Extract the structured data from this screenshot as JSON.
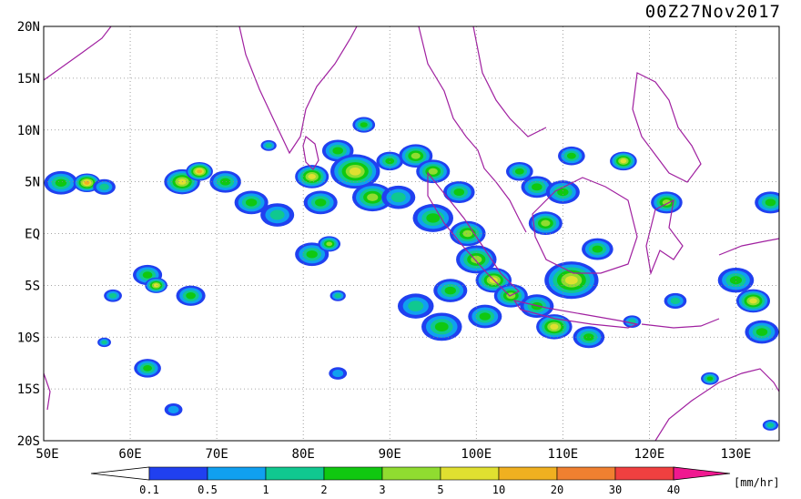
{
  "header": {
    "timestamp": "00Z27Nov2017"
  },
  "map": {
    "lon_min": 50,
    "lon_max": 135,
    "lat_min": -20,
    "lat_max": 20,
    "grid_lines": "dotted",
    "lat_labels": [
      "20N",
      "15N",
      "10N",
      "5N",
      "EQ",
      "5S",
      "10S",
      "15S",
      "20S"
    ],
    "lat_values": [
      20,
      15,
      10,
      5,
      0,
      -5,
      -10,
      -15,
      -20
    ],
    "lon_labels": [
      "50E",
      "60E",
      "70E",
      "80E",
      "90E",
      "100E",
      "110E",
      "120E",
      "130E"
    ],
    "lon_values": [
      50,
      60,
      70,
      80,
      90,
      100,
      110,
      120,
      130
    ],
    "coastline_color": "#a020a0"
  },
  "legend": {
    "unit": "[mm/hr]",
    "tick_labels": [
      "0.1",
      "0.5",
      "1",
      "2",
      "3",
      "5",
      "10",
      "20",
      "30",
      "40"
    ],
    "colors": [
      "#2040f0",
      "#10a0f0",
      "#10c890",
      "#10c810",
      "#90dc30",
      "#e0e030",
      "#f0b020",
      "#f08030",
      "#f04040"
    ],
    "low_end_color": "#ffffff",
    "high_end_color": "#f01890"
  },
  "rain_cells": [
    {
      "lon": 52,
      "lat": 4.9,
      "r": 1.5,
      "level": 3
    },
    {
      "lon": 55,
      "lat": 4.9,
      "r": 1.2,
      "level": 6
    },
    {
      "lon": 57,
      "lat": 4.5,
      "r": 1.0,
      "level": 2
    },
    {
      "lon": 66,
      "lat": 5.0,
      "r": 1.6,
      "level": 5
    },
    {
      "lon": 68,
      "lat": 6.0,
      "r": 1.2,
      "level": 6
    },
    {
      "lon": 71,
      "lat": 5.0,
      "r": 1.4,
      "level": 3
    },
    {
      "lon": 74,
      "lat": 3.0,
      "r": 1.5,
      "level": 3
    },
    {
      "lon": 77,
      "lat": 1.8,
      "r": 1.5,
      "level": 2
    },
    {
      "lon": 81,
      "lat": 5.5,
      "r": 1.5,
      "level": 5
    },
    {
      "lon": 82,
      "lat": 3.0,
      "r": 1.5,
      "level": 3
    },
    {
      "lon": 84,
      "lat": 8.0,
      "r": 1.4,
      "level": 3
    },
    {
      "lon": 86,
      "lat": 6.0,
      "r": 2.2,
      "level": 5
    },
    {
      "lon": 88,
      "lat": 3.5,
      "r": 1.8,
      "level": 4
    },
    {
      "lon": 90,
      "lat": 7.0,
      "r": 1.2,
      "level": 3
    },
    {
      "lon": 91,
      "lat": 3.5,
      "r": 1.5,
      "level": 2
    },
    {
      "lon": 93,
      "lat": 7.5,
      "r": 1.5,
      "level": 4
    },
    {
      "lon": 95,
      "lat": 6.0,
      "r": 1.5,
      "level": 4
    },
    {
      "lon": 95,
      "lat": 1.5,
      "r": 1.8,
      "level": 3
    },
    {
      "lon": 98,
      "lat": 4.0,
      "r": 1.4,
      "level": 3
    },
    {
      "lon": 99,
      "lat": 0.0,
      "r": 1.6,
      "level": 4
    },
    {
      "lon": 100,
      "lat": -2.5,
      "r": 1.8,
      "level": 4
    },
    {
      "lon": 102,
      "lat": -4.5,
      "r": 1.6,
      "level": 5
    },
    {
      "lon": 104,
      "lat": -6.0,
      "r": 1.5,
      "level": 4
    },
    {
      "lon": 97,
      "lat": -5.5,
      "r": 1.5,
      "level": 3
    },
    {
      "lon": 93,
      "lat": -7.0,
      "r": 1.6,
      "level": 2
    },
    {
      "lon": 96,
      "lat": -9.0,
      "r": 1.8,
      "level": 3
    },
    {
      "lon": 101,
      "lat": -8.0,
      "r": 1.5,
      "level": 3
    },
    {
      "lon": 105,
      "lat": 6.0,
      "r": 1.2,
      "level": 3
    },
    {
      "lon": 107,
      "lat": 4.5,
      "r": 1.4,
      "level": 3
    },
    {
      "lon": 108,
      "lat": 1.0,
      "r": 1.5,
      "level": 4
    },
    {
      "lon": 110,
      "lat": 4.0,
      "r": 1.5,
      "level": 3
    },
    {
      "lon": 111,
      "lat": 7.5,
      "r": 1.2,
      "level": 3
    },
    {
      "lon": 114,
      "lat": -1.5,
      "r": 1.4,
      "level": 3
    },
    {
      "lon": 111,
      "lat": -4.5,
      "r": 2.4,
      "level": 5
    },
    {
      "lon": 107,
      "lat": -7.0,
      "r": 1.5,
      "level": 3
    },
    {
      "lon": 109,
      "lat": -9.0,
      "r": 1.6,
      "level": 5
    },
    {
      "lon": 113,
      "lat": -10.0,
      "r": 1.4,
      "level": 3
    },
    {
      "lon": 117,
      "lat": 7.0,
      "r": 1.2,
      "level": 5
    },
    {
      "lon": 122,
      "lat": 3.0,
      "r": 1.4,
      "level": 4
    },
    {
      "lon": 130,
      "lat": -4.5,
      "r": 1.6,
      "level": 3
    },
    {
      "lon": 132,
      "lat": -6.5,
      "r": 1.5,
      "level": 5
    },
    {
      "lon": 134,
      "lat": 3.0,
      "r": 1.4,
      "level": 3
    },
    {
      "lon": 133,
      "lat": -9.5,
      "r": 1.5,
      "level": 3
    },
    {
      "lon": 62,
      "lat": -4.0,
      "r": 1.3,
      "level": 3
    },
    {
      "lon": 63,
      "lat": -5.0,
      "r": 1.0,
      "level": 5
    },
    {
      "lon": 67,
      "lat": -6.0,
      "r": 1.3,
      "level": 3
    },
    {
      "lon": 58,
      "lat": -6.0,
      "r": 0.8,
      "level": 2
    },
    {
      "lon": 57,
      "lat": -10.5,
      "r": 0.6,
      "level": 2
    },
    {
      "lon": 62,
      "lat": -13.0,
      "r": 1.2,
      "level": 3
    },
    {
      "lon": 65,
      "lat": -17.0,
      "r": 0.8,
      "level": 1
    },
    {
      "lon": 81,
      "lat": -2.0,
      "r": 1.5,
      "level": 3
    },
    {
      "lon": 83,
      "lat": -1.0,
      "r": 1.0,
      "level": 4
    },
    {
      "lon": 84,
      "lat": -6.0,
      "r": 0.7,
      "level": 2
    },
    {
      "lon": 84,
      "lat": -13.5,
      "r": 0.8,
      "level": 1
    },
    {
      "lon": 87,
      "lat": 10.5,
      "r": 1.0,
      "level": 3
    },
    {
      "lon": 76,
      "lat": 8.5,
      "r": 0.7,
      "level": 2
    },
    {
      "lon": 127,
      "lat": -14.0,
      "r": 0.8,
      "level": 3
    },
    {
      "lon": 134,
      "lat": -18.5,
      "r": 0.7,
      "level": 2
    },
    {
      "lon": 123,
      "lat": -6.5,
      "r": 1.0,
      "level": 2
    },
    {
      "lon": 118,
      "lat": -8.5,
      "r": 0.8,
      "level": 2
    }
  ]
}
